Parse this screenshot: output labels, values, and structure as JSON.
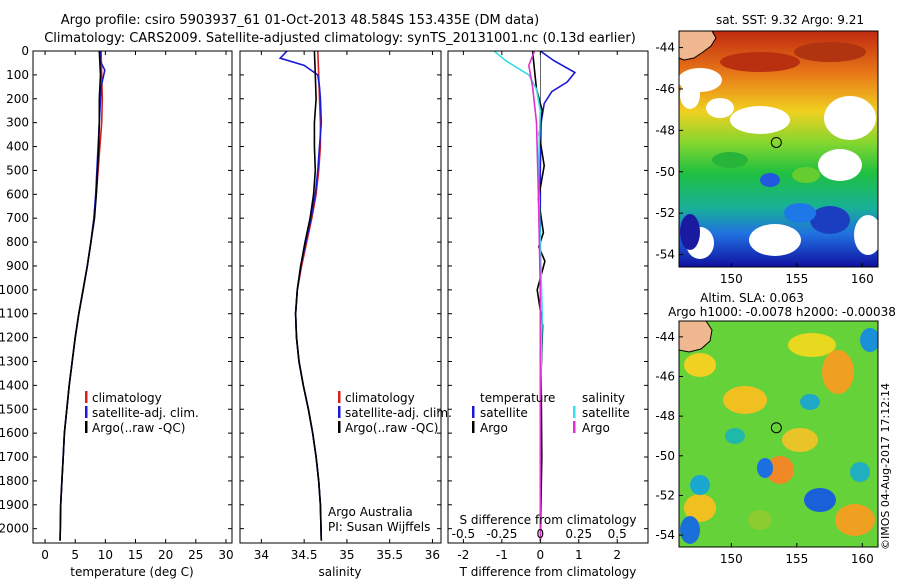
{
  "header": {
    "title_line1": "Argo profile: csiro 5903937_61 01-Oct-2013 48.584S 153.435E (DM data)",
    "title_line2": "Climatology: CARS2009. Satellite-adjusted climatology: synTS_20131001.nc (0.13d earlier)"
  },
  "footer": {
    "credit": "©IMOS 04-Aug-2017 17:12:14",
    "pi_line1": "Argo Australia",
    "pi_line2": "PI: Susan Wijffels"
  },
  "colors": {
    "climatology": "#d42020",
    "satellite": "#1a1ad6",
    "argo": "#000000",
    "satellite_salinity": "#33e0e8",
    "argo_salinity": "#e030d0",
    "marker": "#000000",
    "land": "#f0b890"
  },
  "chart_data": [
    {
      "type": "line",
      "name": "temperature-profile",
      "xlabel": "temperature (deg C)",
      "ylabel": "",
      "xlim": [
        -2,
        31
      ],
      "ylim": [
        2060,
        0
      ],
      "xticks": [
        0,
        5,
        10,
        15,
        20,
        25,
        30
      ],
      "yticks": [
        0,
        100,
        200,
        300,
        400,
        500,
        600,
        700,
        800,
        900,
        1000,
        1100,
        1200,
        1300,
        1400,
        1500,
        1600,
        1700,
        1800,
        1900,
        2000
      ],
      "legend": {
        "position": "middle-right",
        "entries": [
          "climatology",
          "satellite-adj. clim.",
          "Argo(..raw -QC)"
        ]
      },
      "series": [
        {
          "name": "climatology",
          "color_key": "climatology",
          "x": [
            9.3,
            9.4,
            9.5,
            9.4,
            9.1,
            8.8,
            8.5,
            8.1,
            7.6,
            7.0,
            6.3,
            5.6,
            5.0,
            4.5,
            4.0,
            3.6,
            3.2,
            3.0,
            2.8,
            2.6,
            2.5
          ],
          "y": [
            0,
            100,
            200,
            300,
            400,
            500,
            600,
            700,
            800,
            900,
            1000,
            1100,
            1200,
            1300,
            1400,
            1500,
            1600,
            1700,
            1800,
            1900,
            2050
          ]
        },
        {
          "name": "satellite-adj. clim.",
          "color_key": "satellite",
          "x": [
            9.2,
            9.1,
            9.9,
            9.3,
            9.2,
            9.0,
            8.8,
            8.6,
            8.4,
            8.1,
            7.6,
            7.0,
            6.3,
            5.6,
            5.0,
            4.5,
            4.0,
            3.6,
            3.2,
            3.0,
            2.8,
            2.6,
            2.5
          ],
          "y": [
            0,
            40,
            80,
            150,
            200,
            300,
            400,
            500,
            600,
            700,
            800,
            900,
            1000,
            1100,
            1200,
            1300,
            1400,
            1500,
            1600,
            1700,
            1800,
            1900,
            2050
          ]
        },
        {
          "name": "Argo(..raw -QC)",
          "color_key": "argo",
          "x": [
            9.0,
            9.1,
            9.2,
            9.0,
            9.0,
            8.9,
            8.7,
            8.5,
            8.2,
            7.6,
            7.0,
            6.3,
            5.6,
            5.0,
            4.5,
            4.0,
            3.6,
            3.2,
            3.0,
            2.8,
            2.6,
            2.5
          ],
          "y": [
            0,
            50,
            100,
            200,
            300,
            400,
            500,
            600,
            700,
            800,
            900,
            1000,
            1100,
            1200,
            1300,
            1400,
            1500,
            1600,
            1700,
            1800,
            1900,
            2050
          ]
        }
      ]
    },
    {
      "type": "line",
      "name": "salinity-profile",
      "xlabel": "salinity",
      "ylabel": "",
      "xlim": [
        33.75,
        36.1
      ],
      "ylim": [
        2060,
        0
      ],
      "xticks": [
        34,
        34.5,
        35,
        35.5,
        36
      ],
      "yticks": [],
      "legend": {
        "position": "middle-right",
        "entries": [
          "climatology",
          "satellite-adj. clim.",
          "Argo(..raw -QC)"
        ]
      },
      "series": [
        {
          "name": "climatology",
          "color_key": "climatology",
          "x": [
            34.66,
            34.67,
            34.68,
            34.69,
            34.69,
            34.67,
            34.64,
            34.59,
            34.53,
            34.47,
            34.42,
            34.4,
            34.41,
            34.44,
            34.49,
            34.55,
            34.6,
            34.64,
            34.67,
            34.69,
            34.7
          ],
          "y": [
            0,
            100,
            200,
            300,
            400,
            500,
            600,
            700,
            800,
            900,
            1000,
            1100,
            1200,
            1300,
            1400,
            1500,
            1600,
            1700,
            1800,
            1900,
            2050
          ]
        },
        {
          "name": "satellite-adj. clim.",
          "color_key": "satellite",
          "x": [
            34.3,
            34.22,
            34.5,
            34.66,
            34.68,
            34.69,
            34.7,
            34.68,
            34.66,
            34.63,
            34.58,
            34.52,
            34.46,
            34.42,
            34.4,
            34.41,
            34.44,
            34.49,
            34.55,
            34.6,
            34.64,
            34.67,
            34.69,
            34.7
          ],
          "y": [
            0,
            30,
            60,
            100,
            150,
            200,
            300,
            400,
            500,
            600,
            700,
            800,
            900,
            1000,
            1100,
            1200,
            1300,
            1400,
            1500,
            1600,
            1700,
            1800,
            1900,
            2050
          ]
        },
        {
          "name": "Argo(..raw -QC)",
          "color_key": "argo",
          "x": [
            34.62,
            34.63,
            34.64,
            34.62,
            34.62,
            34.63,
            34.61,
            34.57,
            34.51,
            34.46,
            34.42,
            34.4,
            34.41,
            34.44,
            34.49,
            34.55,
            34.6,
            34.64,
            34.67,
            34.69,
            34.7
          ],
          "y": [
            0,
            100,
            200,
            300,
            400,
            500,
            600,
            700,
            800,
            900,
            1000,
            1100,
            1200,
            1300,
            1400,
            1500,
            1600,
            1700,
            1800,
            1900,
            2050
          ]
        }
      ]
    },
    {
      "type": "line",
      "name": "difference-profile",
      "xlabel": "T difference from climatology",
      "xlabel_top": "S difference from climatology",
      "ylabel": "",
      "xlim": [
        -2.4,
        2.8
      ],
      "ylim": [
        2060,
        0
      ],
      "xticks": [
        -2,
        -1,
        0,
        1,
        2
      ],
      "top_ticks": [
        {
          "x": -2,
          "label": "-0.5"
        },
        {
          "x": -1,
          "label": "-0.25"
        },
        {
          "x": 0,
          "label": "0"
        },
        {
          "x": 1,
          "label": "0.25"
        },
        {
          "x": 2,
          "label": "0.5"
        }
      ],
      "yticks": [],
      "legend": {
        "position": "middle",
        "left_title": "temperature",
        "right_title": "salinity",
        "left_entries": [
          "satellite",
          "Argo"
        ],
        "right_entries": [
          "satellite",
          "Argo"
        ]
      },
      "series": [
        {
          "name": "temperature satellite",
          "color_key": "satellite",
          "x": [
            0,
            0.35,
            0.9,
            0.7,
            0.3,
            0.1,
            0.02,
            0,
            0,
            0,
            0,
            0
          ],
          "y": [
            0,
            40,
            90,
            130,
            170,
            220,
            300,
            500,
            800,
            1200,
            1600,
            2050
          ]
        },
        {
          "name": "temperature Argo",
          "color_key": "argo",
          "x": [
            -0.2,
            -0.15,
            -0.1,
            0.05,
            -0.03,
            0.1,
            -0.05,
            0.08,
            -0.04,
            0.12,
            -0.08,
            0.06,
            0.02,
            0.04,
            0
          ],
          "y": [
            0,
            80,
            160,
            250,
            350,
            480,
            620,
            760,
            820,
            880,
            1000,
            1150,
            1350,
            1700,
            2050
          ]
        },
        {
          "name": "salinity satellite",
          "color_key": "satellite_salinity",
          "x": [
            -1.2,
            -0.9,
            -0.3,
            -0.1,
            0,
            -0.05,
            0,
            0.05,
            0,
            0
          ],
          "y": [
            0,
            40,
            100,
            160,
            250,
            500,
            800,
            1100,
            1500,
            2050
          ]
        },
        {
          "name": "salinity Argo",
          "color_key": "argo_salinity",
          "x": [
            -0.15,
            -0.3,
            -0.2,
            -0.1,
            -0.05,
            0,
            0,
            0
          ],
          "y": [
            0,
            60,
            150,
            300,
            600,
            1000,
            1500,
            2050
          ]
        }
      ]
    },
    {
      "type": "heatmap",
      "name": "sst-map",
      "title": "sat. SST: 9.32  Argo: 9.21",
      "xlim": [
        146,
        161.2
      ],
      "ylim": [
        -54.6,
        -43.2
      ],
      "xticks": [
        150,
        155,
        160
      ],
      "yticks": [
        -44,
        -46,
        -48,
        -50,
        -52,
        -54
      ],
      "marker": {
        "lon": 153.435,
        "lat": -48.584
      }
    },
    {
      "type": "heatmap",
      "name": "sla-map",
      "title_line1": "Altim. SLA: 0.063",
      "title_line2": "Argo h1000: -0.0078  h2000: -0.00038",
      "xlim": [
        146,
        161.2
      ],
      "ylim": [
        -54.6,
        -43.2
      ],
      "xticks": [
        150,
        155,
        160
      ],
      "yticks": [
        -44,
        -46,
        -48,
        -50,
        -52,
        -54
      ],
      "marker": {
        "lon": 153.435,
        "lat": -48.584
      }
    }
  ]
}
